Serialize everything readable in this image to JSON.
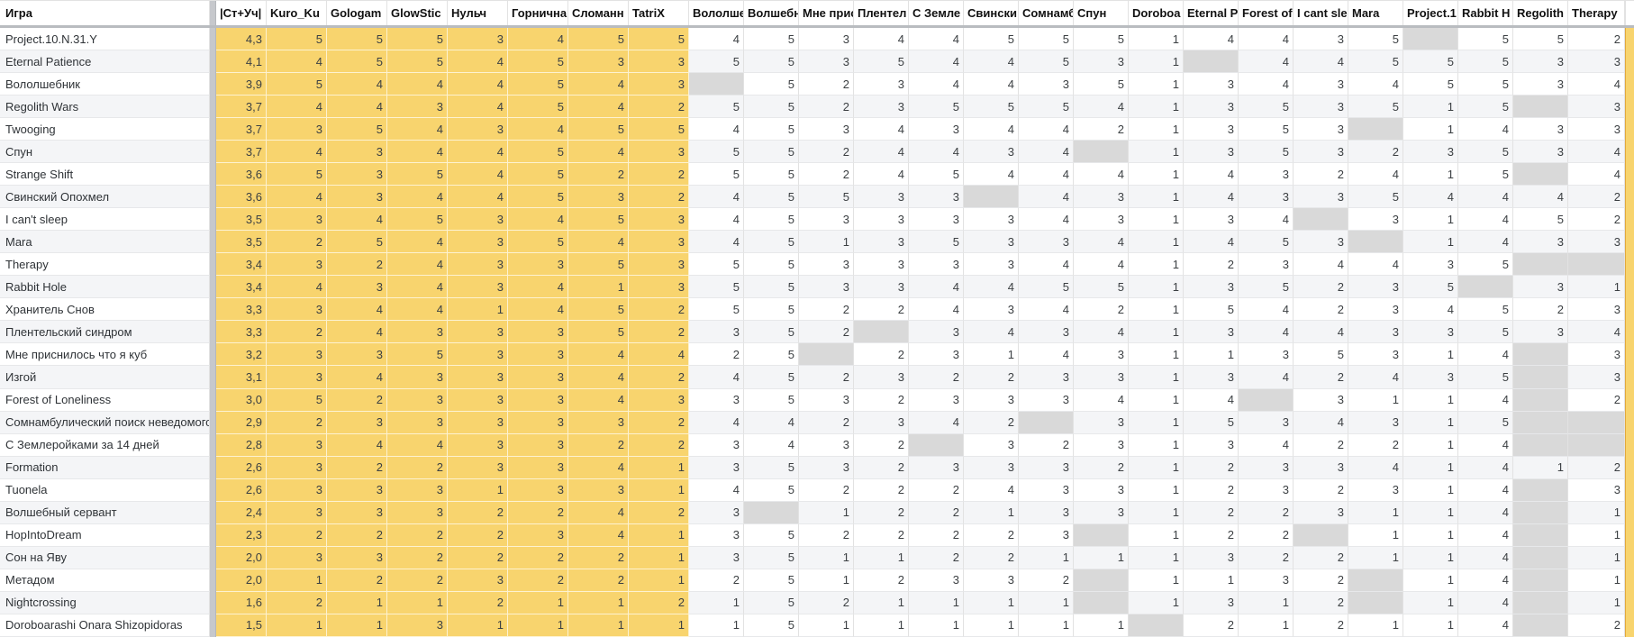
{
  "colors": {
    "rated_block_yellow": "#f8d46e",
    "empty_cell_gray": "#d9d9d9",
    "row_band": "#f4f5f7",
    "frozen_divider": "#c6c8cc"
  },
  "table": {
    "name_header": "Игра",
    "columns": [
      "|Ст+Уч|",
      "Kuro_Ku",
      "Gologam",
      "GlowStic",
      "Нульч",
      "Горнична",
      "Сломанн",
      "TatriX",
      "Вололше",
      "Волшебн",
      "Мне присн",
      "Плентел",
      "С Земле",
      "Свински",
      "Сомнамб",
      "Спун",
      "Doroboa",
      "Eternal P",
      "Forest of",
      "I cant sle",
      "Mara",
      "Project.1",
      "Rabbit H",
      "Regolith",
      "Therapy"
    ],
    "yellow_column_count": 8,
    "rows": [
      {
        "name": "Project.10.N.31.Y",
        "values": [
          "4,3",
          5,
          5,
          5,
          3,
          4,
          5,
          5,
          4,
          5,
          3,
          4,
          4,
          5,
          5,
          5,
          1,
          4,
          4,
          3,
          5,
          null,
          5,
          5,
          2
        ]
      },
      {
        "name": "Eternal Patience",
        "values": [
          "4,1",
          4,
          5,
          5,
          4,
          5,
          3,
          3,
          5,
          5,
          3,
          5,
          4,
          4,
          5,
          3,
          1,
          null,
          4,
          4,
          5,
          5,
          5,
          3,
          3
        ]
      },
      {
        "name": "Вололшебник",
        "values": [
          "3,9",
          5,
          4,
          4,
          4,
          5,
          4,
          3,
          null,
          5,
          2,
          3,
          4,
          4,
          3,
          5,
          1,
          3,
          4,
          3,
          4,
          5,
          5,
          3,
          4
        ]
      },
      {
        "name": "Regolith Wars",
        "values": [
          "3,7",
          4,
          4,
          3,
          4,
          5,
          4,
          2,
          5,
          5,
          2,
          3,
          5,
          5,
          5,
          4,
          1,
          3,
          5,
          3,
          5,
          1,
          5,
          null,
          3
        ]
      },
      {
        "name": "Twooging",
        "values": [
          "3,7",
          3,
          5,
          4,
          3,
          4,
          5,
          5,
          4,
          5,
          3,
          4,
          3,
          4,
          4,
          2,
          1,
          3,
          5,
          3,
          null,
          1,
          4,
          3,
          3
        ]
      },
      {
        "name": "Спун",
        "values": [
          "3,7",
          4,
          3,
          4,
          4,
          5,
          4,
          3,
          5,
          5,
          2,
          4,
          4,
          3,
          4,
          null,
          1,
          3,
          5,
          3,
          2,
          3,
          5,
          3,
          4
        ]
      },
      {
        "name": "Strange Shift",
        "values": [
          "3,6",
          5,
          3,
          5,
          4,
          5,
          2,
          2,
          5,
          5,
          2,
          4,
          5,
          4,
          4,
          4,
          1,
          4,
          3,
          2,
          4,
          1,
          5,
          null,
          4
        ]
      },
      {
        "name": "Свинский Опохмел",
        "values": [
          "3,6",
          4,
          3,
          4,
          4,
          5,
          3,
          2,
          4,
          5,
          5,
          3,
          3,
          null,
          4,
          3,
          1,
          4,
          3,
          3,
          5,
          4,
          4,
          4,
          2
        ]
      },
      {
        "name": "I can't sleep",
        "values": [
          "3,5",
          3,
          4,
          5,
          3,
          4,
          5,
          3,
          4,
          5,
          3,
          3,
          3,
          3,
          4,
          3,
          1,
          3,
          4,
          null,
          3,
          1,
          4,
          5,
          2
        ]
      },
      {
        "name": "Mara",
        "values": [
          "3,5",
          2,
          5,
          4,
          3,
          5,
          4,
          3,
          4,
          5,
          1,
          3,
          5,
          3,
          3,
          4,
          1,
          4,
          5,
          3,
          null,
          1,
          4,
          3,
          3
        ]
      },
      {
        "name": "Therapy",
        "values": [
          "3,4",
          3,
          2,
          4,
          3,
          3,
          5,
          3,
          5,
          5,
          3,
          3,
          3,
          3,
          4,
          4,
          1,
          2,
          3,
          4,
          4,
          3,
          5,
          null,
          null
        ]
      },
      {
        "name": "Rabbit Hole",
        "values": [
          "3,4",
          4,
          3,
          4,
          3,
          4,
          1,
          3,
          5,
          5,
          3,
          3,
          4,
          4,
          5,
          5,
          1,
          3,
          5,
          2,
          3,
          5,
          null,
          3,
          1
        ]
      },
      {
        "name": "Хранитель Снов",
        "values": [
          "3,3",
          3,
          4,
          4,
          1,
          4,
          5,
          2,
          5,
          5,
          2,
          2,
          4,
          3,
          4,
          2,
          1,
          5,
          4,
          2,
          3,
          4,
          5,
          2,
          3
        ]
      },
      {
        "name": "Плентельский синдром",
        "values": [
          "3,3",
          2,
          4,
          3,
          3,
          3,
          5,
          2,
          3,
          5,
          2,
          null,
          3,
          4,
          3,
          4,
          1,
          3,
          4,
          4,
          3,
          3,
          5,
          3,
          4
        ]
      },
      {
        "name": "Мне приснилось что я куб",
        "values": [
          "3,2",
          3,
          3,
          5,
          3,
          3,
          4,
          4,
          2,
          5,
          null,
          2,
          3,
          1,
          4,
          3,
          1,
          1,
          3,
          5,
          3,
          1,
          4,
          null,
          3
        ]
      },
      {
        "name": "Изгой",
        "values": [
          "3,1",
          3,
          4,
          3,
          3,
          3,
          4,
          2,
          4,
          5,
          2,
          3,
          2,
          2,
          3,
          3,
          1,
          3,
          4,
          2,
          4,
          3,
          5,
          null,
          3
        ]
      },
      {
        "name": "Forest of Loneliness",
        "values": [
          "3,0",
          5,
          2,
          3,
          3,
          3,
          4,
          3,
          3,
          5,
          3,
          2,
          3,
          3,
          3,
          4,
          1,
          4,
          null,
          3,
          1,
          1,
          4,
          null,
          2
        ]
      },
      {
        "name": "Сомнамбулический поиск неведомого Ква",
        "values": [
          "2,9",
          2,
          3,
          3,
          3,
          3,
          3,
          2,
          4,
          4,
          2,
          3,
          4,
          2,
          null,
          3,
          1,
          5,
          3,
          4,
          3,
          1,
          5,
          null,
          null
        ]
      },
      {
        "name": "С Землеройками за 14 дней",
        "values": [
          "2,8",
          3,
          4,
          4,
          3,
          3,
          2,
          2,
          3,
          4,
          3,
          2,
          null,
          3,
          2,
          3,
          1,
          3,
          4,
          2,
          2,
          1,
          4,
          null,
          null
        ]
      },
      {
        "name": "Formation",
        "values": [
          "2,6",
          3,
          2,
          2,
          3,
          3,
          4,
          1,
          3,
          5,
          3,
          2,
          3,
          3,
          3,
          2,
          1,
          2,
          3,
          3,
          4,
          1,
          4,
          1,
          2
        ]
      },
      {
        "name": "Tuonela",
        "values": [
          "2,6",
          3,
          3,
          3,
          1,
          3,
          3,
          1,
          4,
          5,
          2,
          2,
          2,
          4,
          3,
          3,
          1,
          2,
          3,
          2,
          3,
          1,
          4,
          null,
          3
        ]
      },
      {
        "name": "Волшебный сервант",
        "values": [
          "2,4",
          3,
          3,
          3,
          2,
          2,
          4,
          2,
          3,
          null,
          1,
          2,
          2,
          1,
          3,
          3,
          1,
          2,
          2,
          3,
          1,
          1,
          4,
          null,
          1
        ]
      },
      {
        "name": "HopIntoDream",
        "values": [
          "2,3",
          2,
          2,
          2,
          2,
          3,
          4,
          1,
          3,
          5,
          2,
          2,
          2,
          2,
          3,
          null,
          1,
          2,
          2,
          null,
          1,
          1,
          4,
          null,
          1
        ]
      },
      {
        "name": "Сон на Яву",
        "values": [
          "2,0",
          3,
          3,
          2,
          2,
          2,
          2,
          1,
          3,
          5,
          1,
          1,
          2,
          2,
          1,
          1,
          1,
          3,
          2,
          2,
          1,
          1,
          4,
          null,
          1
        ]
      },
      {
        "name": "Метадом",
        "values": [
          "2,0",
          1,
          2,
          2,
          3,
          2,
          2,
          1,
          2,
          5,
          1,
          2,
          3,
          3,
          2,
          null,
          1,
          1,
          3,
          2,
          null,
          1,
          4,
          null,
          1
        ]
      },
      {
        "name": "Nightcrossing",
        "values": [
          "1,6",
          2,
          1,
          1,
          2,
          1,
          1,
          2,
          1,
          5,
          2,
          1,
          1,
          1,
          1,
          null,
          1,
          3,
          1,
          2,
          null,
          1,
          4,
          null,
          1
        ]
      },
      {
        "name": "Doroboarashi Onara Shizopidoras",
        "values": [
          "1,5",
          1,
          1,
          3,
          1,
          1,
          1,
          1,
          1,
          5,
          1,
          1,
          1,
          1,
          1,
          1,
          null,
          2,
          1,
          2,
          1,
          1,
          4,
          null,
          2
        ]
      }
    ]
  }
}
